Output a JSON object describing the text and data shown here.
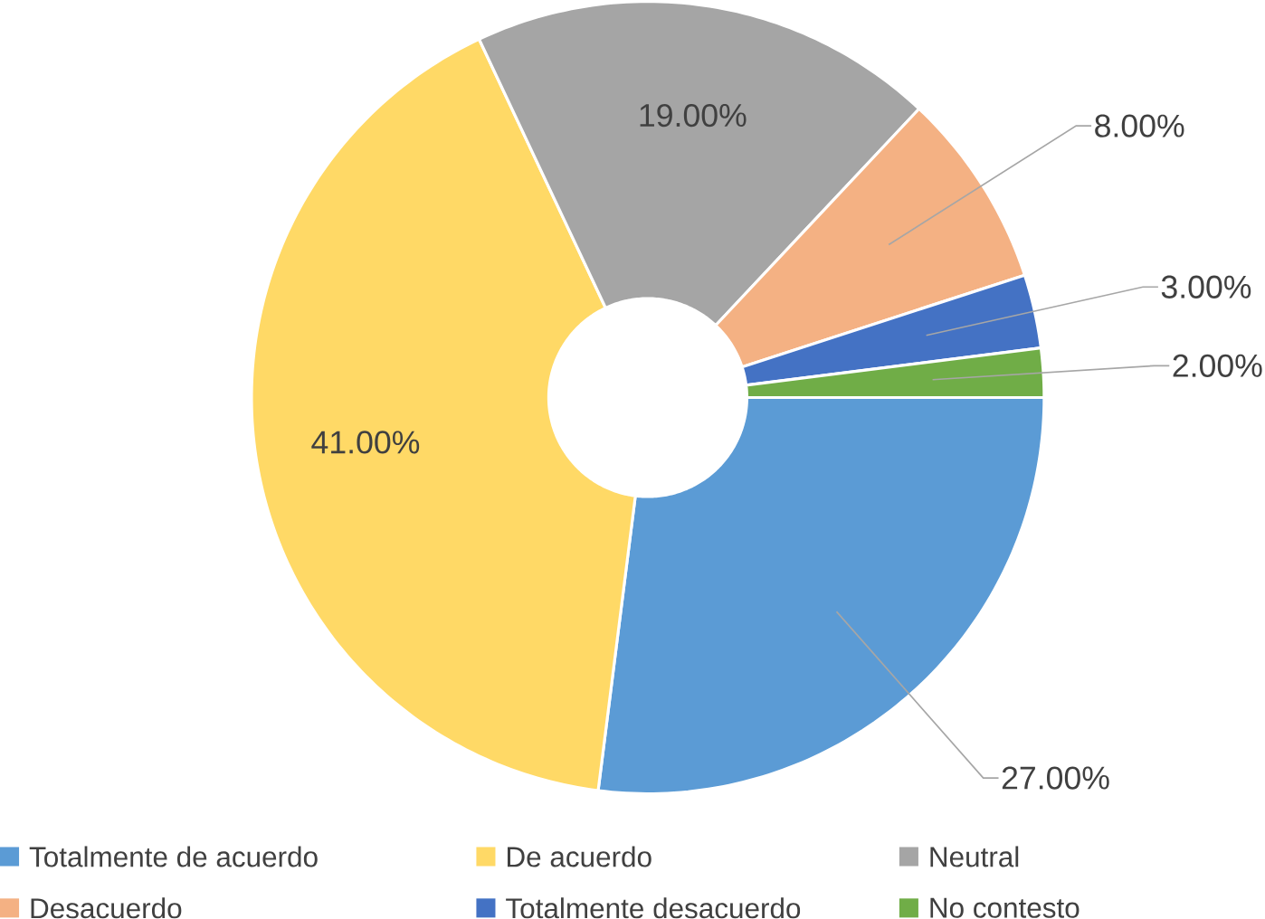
{
  "chart_data": {
    "type": "donut",
    "categories": [
      "Totalmente de acuerdo",
      "De acuerdo",
      "Neutral",
      "Desacuerdo",
      "Totalmente desacuerdo",
      "No contesto"
    ],
    "values": [
      27,
      41,
      19,
      8,
      3,
      2
    ],
    "colors": [
      "#5b9bd5",
      "#ffd966",
      "#a5a5a5",
      "#f4b183",
      "#4472c4",
      "#70ad47"
    ],
    "value_labels": [
      "27.00%",
      "41.00%",
      "19.00%",
      "8.00%",
      "3.00%",
      "2.00%"
    ],
    "legend": "bottom"
  }
}
